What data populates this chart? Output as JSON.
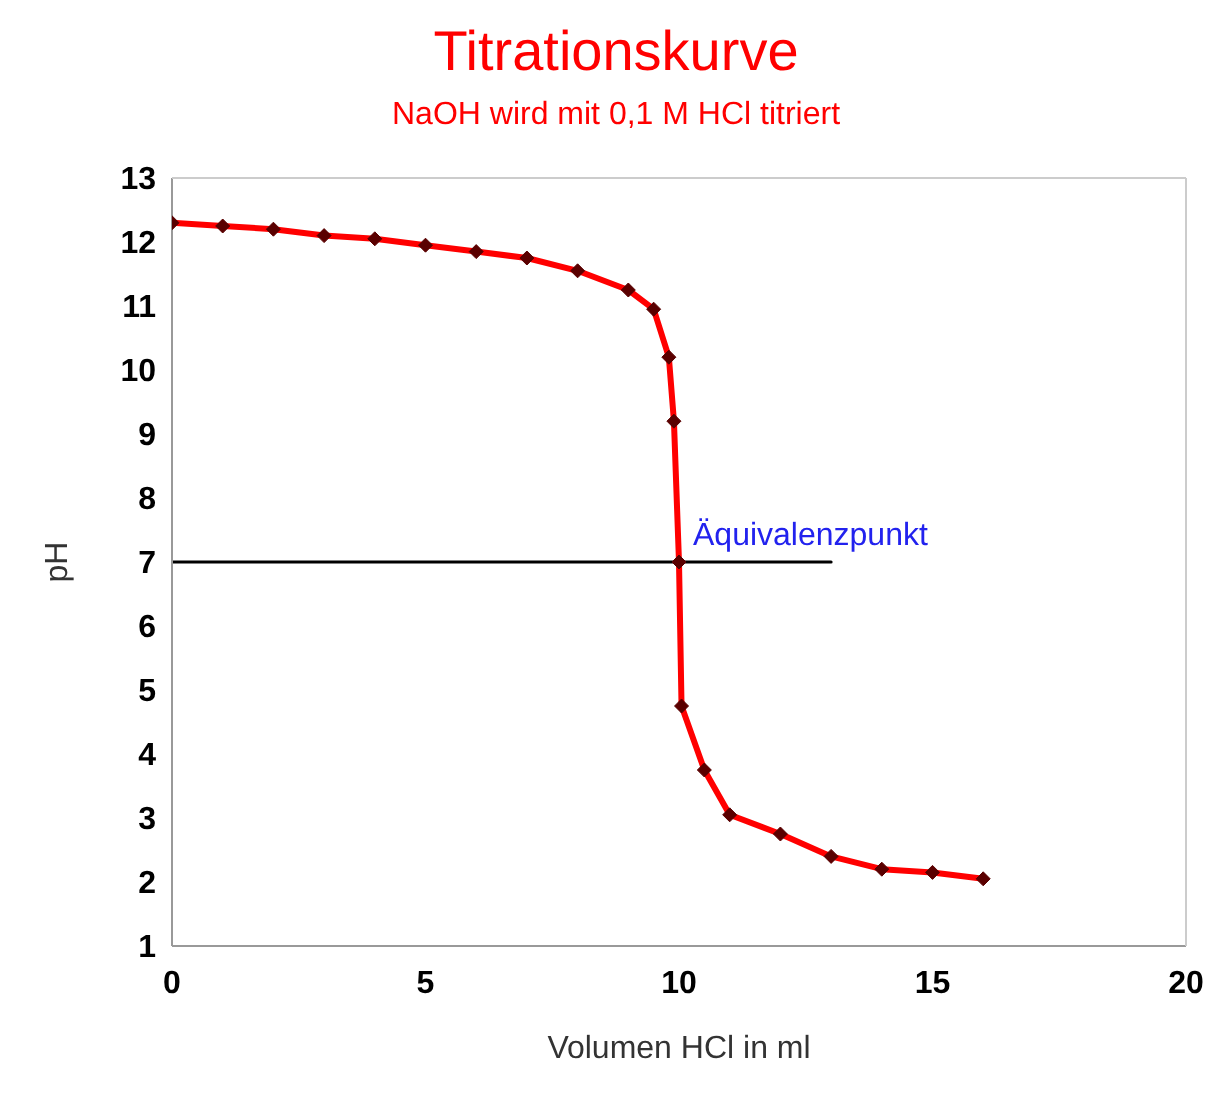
{
  "chart_data": {
    "type": "line",
    "title": "Titrationskurve",
    "subtitle": "NaOH wird mit 0,1 M HCl titriert",
    "xlabel": "Volumen HCl in ml",
    "ylabel": "pH",
    "series": [
      {
        "color": "#ff0000",
        "marker": "diamond",
        "x": [
          0,
          1,
          2,
          3,
          4,
          5,
          6,
          7,
          8,
          9,
          9.5,
          9.8,
          9.9,
          10,
          10.05,
          10.5,
          11,
          12,
          13,
          14,
          15,
          16
        ],
        "values": [
          12.3,
          12.25,
          12.2,
          12.1,
          12.05,
          11.95,
          11.85,
          11.75,
          11.55,
          11.25,
          10.95,
          10.2,
          9.2,
          7,
          4.75,
          3.75,
          3.05,
          2.75,
          2.4,
          2.2,
          2.15,
          2.05
        ]
      },
      {
        "color": "#000000",
        "marker": "none",
        "x": [
          0,
          13
        ],
        "values": [
          7,
          7
        ]
      }
    ],
    "annotations": [
      {
        "text": "Äquivalenzpunkt",
        "x": 10,
        "y": 7
      }
    ],
    "xlim": [
      0,
      20
    ],
    "xticks": [
      0,
      5,
      10,
      15,
      20
    ],
    "ylim": [
      1,
      13
    ],
    "yticks": [
      1,
      2,
      3,
      4,
      5,
      6,
      7,
      8,
      9,
      10,
      11,
      12,
      13
    ],
    "grid": false,
    "legend": false
  }
}
